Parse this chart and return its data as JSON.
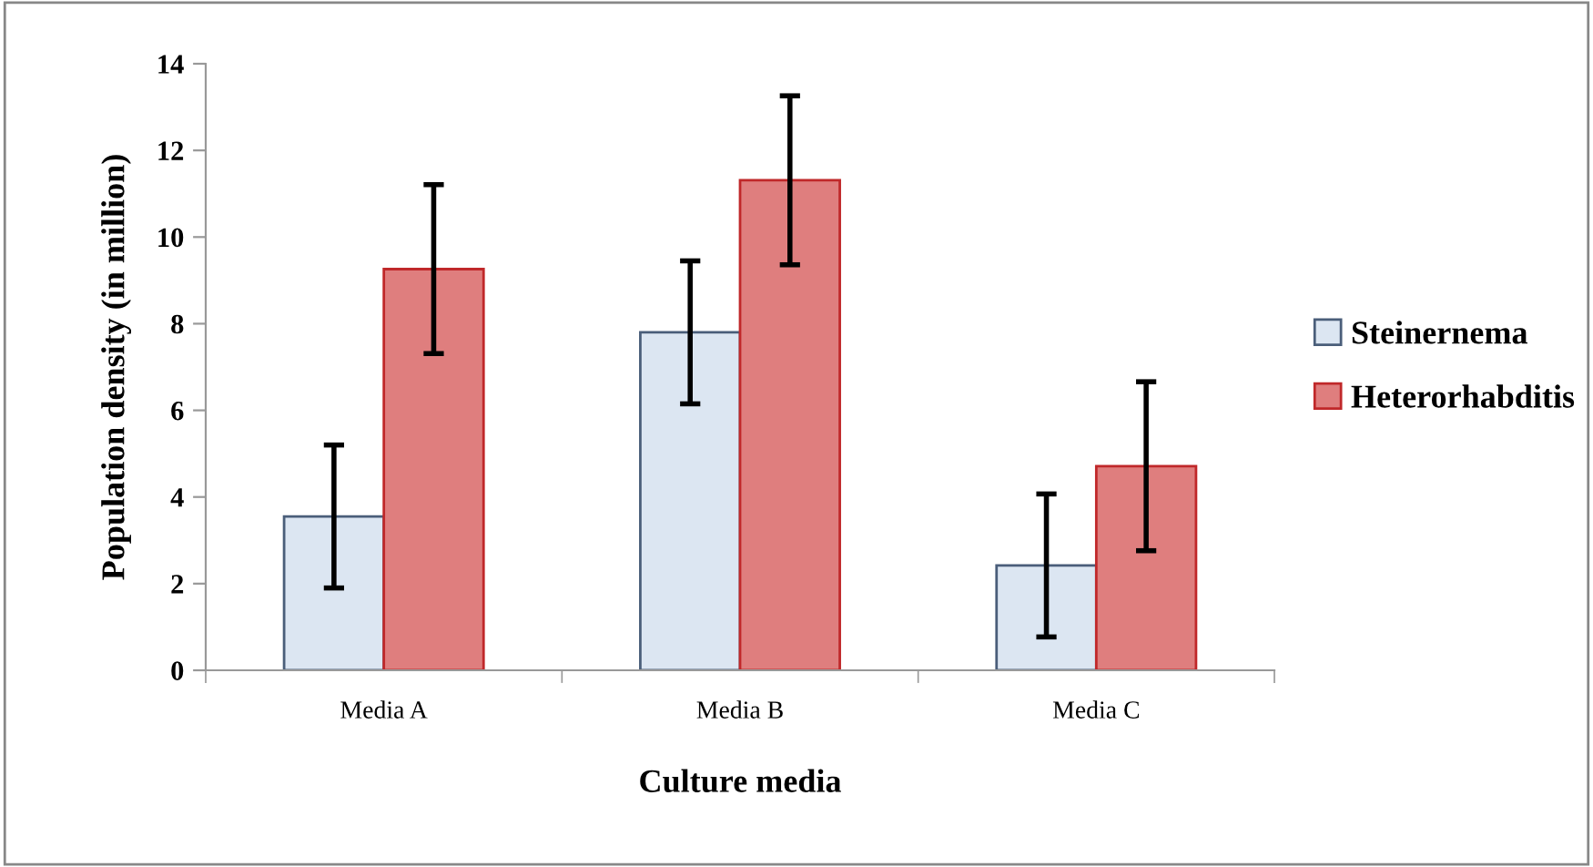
{
  "chart_data": {
    "type": "bar",
    "xlabel": "Culture media",
    "ylabel": "Population density (in million)",
    "categories": [
      "Media A",
      "Media B",
      "Media C"
    ],
    "series": [
      {
        "name": "Steinernema",
        "color": "#dce6f2",
        "values": [
          3.55,
          7.8,
          2.42
        ],
        "errors": [
          1.65,
          1.65,
          1.65
        ]
      },
      {
        "name": "Heterorhabditis",
        "color": "#df7e7e",
        "values": [
          9.26,
          11.31,
          4.71
        ],
        "errors": [
          1.95,
          1.95,
          1.95
        ]
      }
    ],
    "ylim": [
      0,
      14
    ],
    "yticks": [
      0,
      2,
      4,
      6,
      8,
      10,
      12,
      14
    ],
    "grid": false,
    "legend": "right"
  }
}
